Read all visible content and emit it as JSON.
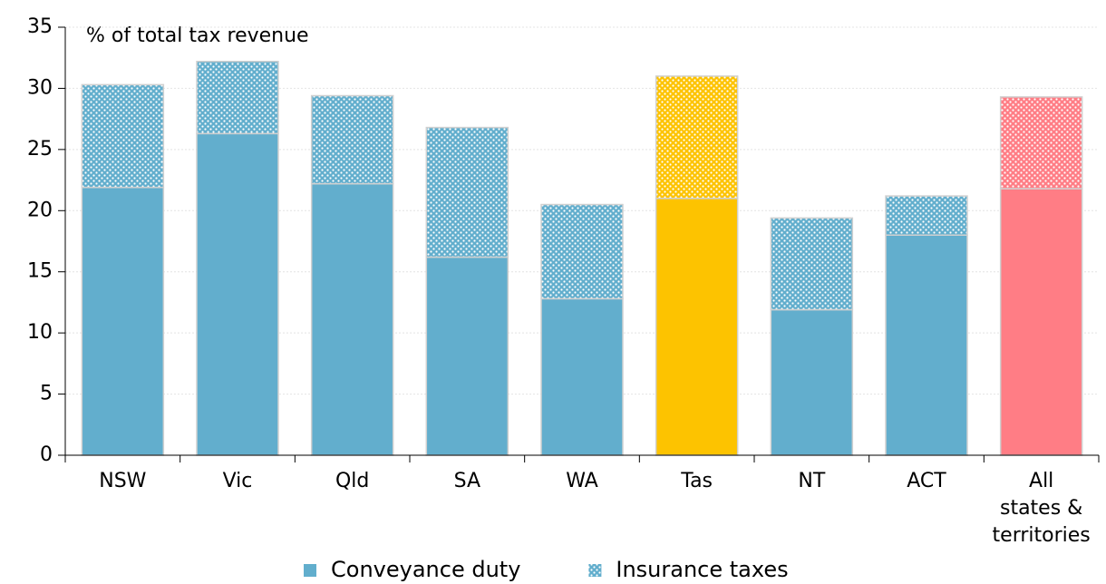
{
  "chart_data": {
    "type": "stacked_bar",
    "y_axis_label": "% of total tax revenue",
    "categories": [
      "NSW",
      "Vic",
      "Qld",
      "SA",
      "WA",
      "Tas",
      "NT",
      "ACT",
      "All\nstates &\nterritories"
    ],
    "series": [
      {
        "name": "Conveyance duty",
        "color": "#62aecd",
        "colors": [
          "#62aecd",
          "#62aecd",
          "#62aecd",
          "#62aecd",
          "#62aecd",
          "#fdc300",
          "#62aecd",
          "#62aecd",
          "#ff7d85"
        ],
        "values": [
          21.9,
          26.3,
          22.2,
          16.2,
          12.8,
          21.0,
          11.9,
          18.0,
          21.8
        ]
      },
      {
        "name": "Insurance taxes",
        "color": "#62aecd",
        "pattern": "dots",
        "colors": [
          "#62aecd",
          "#62aecd",
          "#62aecd",
          "#62aecd",
          "#62aecd",
          "#fdc300",
          "#62aecd",
          "#62aecd",
          "#ff7d85"
        ],
        "values": [
          8.4,
          5.9,
          7.2,
          10.6,
          7.7,
          10.0,
          7.5,
          3.2,
          7.5
        ]
      }
    ],
    "ylim": [
      0,
      35
    ],
    "yticks": [
      0,
      5,
      10,
      15,
      20,
      25,
      30,
      35
    ],
    "grid": true,
    "legend": "bottom"
  }
}
